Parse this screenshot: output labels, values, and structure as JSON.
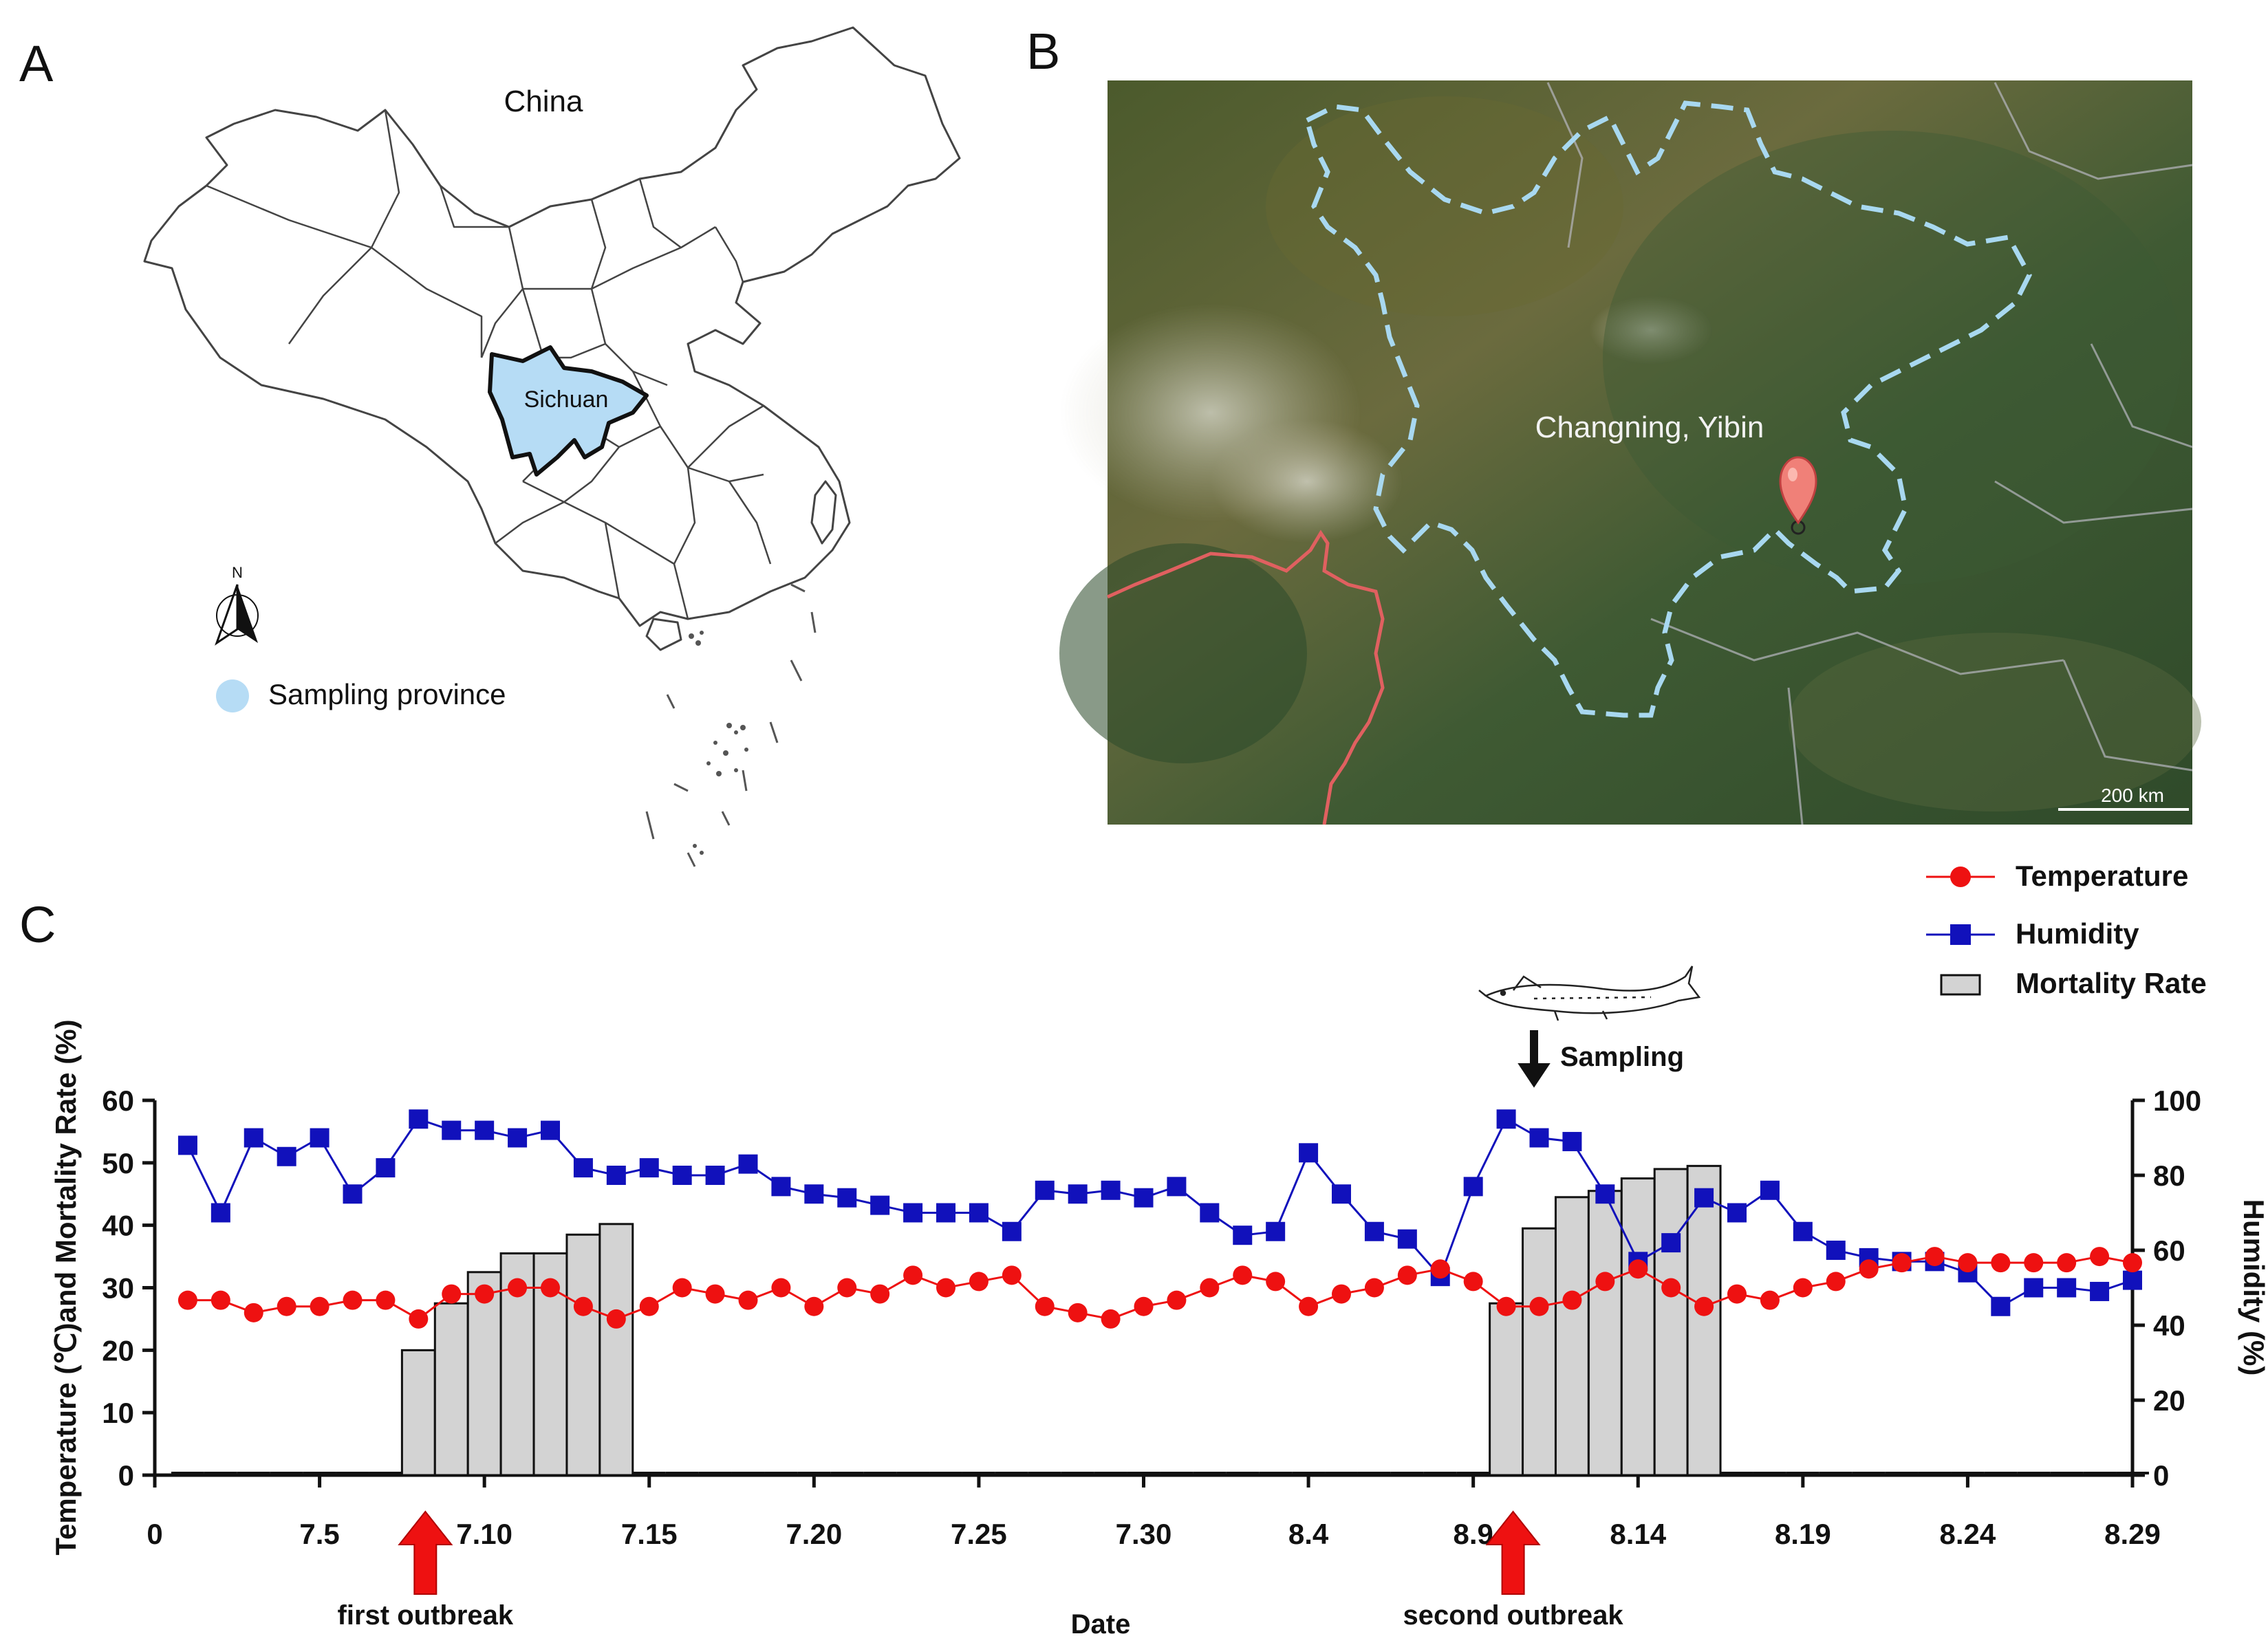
{
  "panels": {
    "a": {
      "letter": "A",
      "country": "China",
      "province": "Sichuan",
      "legend_label": "Sampling province",
      "north": "N",
      "colors": {
        "province": "#b6dcf5",
        "border": "#444444"
      }
    },
    "b": {
      "letter": "B",
      "place": "Changning, Yibin",
      "scale": "200 km",
      "colors": {
        "boundary": "#a8d8f0",
        "red_border": "#e06060",
        "marker": "#f08078"
      }
    },
    "c": {
      "letter": "C",
      "legend": {
        "temperature": "Temperature",
        "humidity": "Humidity",
        "mortality": "Mortality Rate"
      },
      "sampling_label": "Sampling",
      "outbreaks": {
        "first": "first outbreak",
        "second": "second outbreak"
      },
      "x_tick_labels": [
        "0",
        "7.5",
        "7.10",
        "7.15",
        "7.20",
        "7.25",
        "7.30",
        "8.4",
        "8.9",
        "8.14",
        "8.19",
        "8.24",
        "8.29"
      ],
      "colors": {
        "temperature": "#ee1111",
        "humidity": "#1111bb",
        "mortality": "#d3d3d3",
        "arrow": "#ee1111"
      }
    }
  },
  "chart_data": {
    "type": "line",
    "xlabel": "Date",
    "ylabel": "Temperature (℃)and Mortality Rate (%)",
    "y2label": "Humidity (%)",
    "ylim": [
      0,
      60
    ],
    "y2lim": [
      0,
      100
    ],
    "yticks": [
      0,
      10,
      20,
      30,
      40,
      50,
      60
    ],
    "y2ticks": [
      0,
      20,
      40,
      60,
      80,
      100
    ],
    "xlim": [
      0,
      60
    ],
    "x_ticks": [
      0,
      5,
      10,
      15,
      20,
      25,
      30,
      35,
      40,
      45,
      50,
      55,
      60
    ],
    "x": [
      1,
      2,
      3,
      4,
      5,
      6,
      7,
      8,
      9,
      10,
      11,
      12,
      13,
      14,
      15,
      16,
      17,
      18,
      19,
      20,
      21,
      22,
      23,
      24,
      25,
      26,
      27,
      28,
      29,
      30,
      31,
      32,
      33,
      34,
      35,
      36,
      37,
      38,
      39,
      40,
      41,
      42,
      43,
      44,
      45,
      46,
      47,
      48,
      49,
      50,
      51,
      52,
      53,
      54,
      55,
      56,
      57,
      58,
      59,
      60
    ],
    "series": [
      {
        "name": "Temperature",
        "axis": "left",
        "values": [
          28,
          28,
          26,
          27,
          27,
          28,
          28,
          25,
          29,
          29,
          30,
          30,
          27,
          25,
          27,
          30,
          29,
          28,
          30,
          27,
          30,
          29,
          32,
          30,
          31,
          32,
          27,
          26,
          25,
          27,
          28,
          30,
          32,
          31,
          27,
          29,
          30,
          32,
          33,
          31,
          27,
          27,
          28,
          31,
          33,
          30,
          27,
          29,
          28,
          30,
          31,
          33,
          34,
          35,
          34,
          34,
          34,
          34,
          35,
          34
        ]
      },
      {
        "name": "Humidity",
        "axis": "right",
        "values": [
          88,
          70,
          90,
          85,
          90,
          75,
          82,
          95,
          92,
          92,
          90,
          92,
          82,
          80,
          82,
          80,
          80,
          83,
          77,
          75,
          74,
          72,
          70,
          70,
          70,
          65,
          76,
          75,
          76,
          74,
          77,
          70,
          64,
          65,
          86,
          75,
          65,
          63,
          53,
          77,
          95,
          90,
          89,
          75,
          57,
          62,
          74,
          70,
          76,
          65,
          60,
          58,
          57,
          57,
          54,
          45,
          50,
          50,
          49,
          52
        ]
      },
      {
        "name": "Mortality Rate",
        "axis": "left",
        "kind": "bar",
        "values": [
          0,
          0,
          0,
          0,
          0,
          0,
          0,
          20,
          27.5,
          32.5,
          35.5,
          35.5,
          38.5,
          40.2,
          0,
          0,
          0,
          0,
          0,
          0,
          0,
          0,
          0,
          0,
          0,
          0,
          0,
          0,
          0,
          0,
          0,
          0,
          0,
          0,
          0,
          0,
          0,
          0,
          0,
          0,
          27.5,
          39.5,
          44.5,
          45.5,
          47.5,
          49,
          49.5,
          0,
          0,
          0,
          0,
          0,
          0,
          0,
          0,
          0,
          0,
          0,
          0,
          0
        ]
      }
    ],
    "annotations": [
      {
        "text": "first outbreak",
        "x": 8
      },
      {
        "text": "second outbreak",
        "x": 41
      },
      {
        "text": "Sampling",
        "x": 42
      }
    ],
    "legend_position": "top-right",
    "grid": false
  }
}
